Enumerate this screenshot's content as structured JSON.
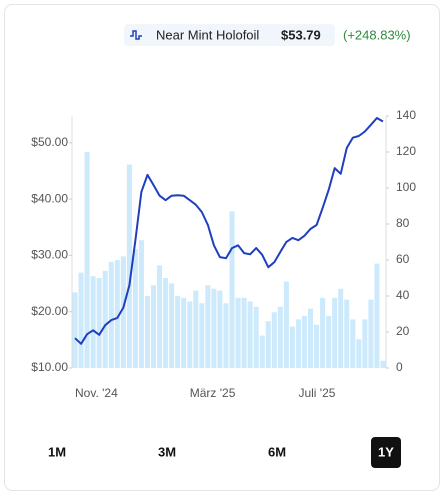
{
  "chart_data": {
    "type": "line",
    "series": [
      {
        "name": "Near Mint Holofoil",
        "color": "#1f3fbf",
        "price": "$53.79",
        "change": "(+248.83%)",
        "change_color": "#2e8b3e",
        "values": [
          15.3,
          14.3,
          16,
          16.7,
          15.9,
          17.6,
          18.5,
          18.9,
          20.7,
          24.7,
          32.7,
          41.3,
          44.3,
          42.5,
          40.6,
          39.8,
          40.6,
          40.7,
          40.6,
          39.8,
          39,
          37.7,
          35.4,
          31.8,
          29.7,
          29.5,
          31.3,
          31.8,
          30.4,
          30.2,
          31.3,
          30.1,
          27.9,
          28.8,
          30.6,
          32.4,
          33.1,
          32.7,
          33.5,
          34.7,
          35.4,
          38.4,
          41.6,
          45.5,
          44.5,
          49.1,
          50.9,
          51.2,
          52,
          53.2,
          54.4,
          53.79
        ]
      },
      {
        "type": "bar",
        "axis": "y2",
        "color": "#cdeafc",
        "values": [
          42,
          53,
          120,
          51,
          50,
          54,
          59,
          60,
          62,
          113,
          66,
          71,
          40,
          46,
          57,
          50,
          47,
          40,
          39,
          37,
          43,
          36,
          46,
          44,
          43,
          36,
          87,
          39,
          39,
          37,
          34,
          18,
          26,
          31,
          34,
          48,
          23,
          27,
          29,
          33,
          24,
          39,
          29,
          39,
          44,
          38,
          27,
          16,
          27,
          38,
          58,
          4
        ]
      }
    ],
    "categories": [
      "Nov. '24",
      null,
      null,
      null,
      null,
      null,
      null,
      null,
      null,
      null,
      null,
      null,
      null,
      null,
      null,
      null,
      null,
      null,
      null,
      "März '25",
      null,
      null,
      null,
      null,
      null,
      null,
      null,
      null,
      null,
      null,
      null,
      null,
      null,
      null,
      null,
      null,
      null,
      "Juli '25",
      null,
      null,
      null,
      null,
      null,
      null,
      null,
      null,
      null,
      null,
      null,
      null,
      null,
      null
    ],
    "ylim": [
      10,
      54.76
    ],
    "yticks": [
      {
        "value": 10,
        "label": "$10.00"
      },
      {
        "value": 20,
        "label": "$20.00"
      },
      {
        "value": 30,
        "label": "$30.00"
      },
      {
        "value": 40,
        "label": "$40.00"
      },
      {
        "value": 50,
        "label": "$50.00"
      }
    ],
    "y2lim": [
      0,
      140
    ],
    "y2ticks": [
      0,
      20,
      40,
      60,
      80,
      100,
      120,
      140
    ],
    "ranges": [
      "1M",
      "3M",
      "6M",
      "1Y"
    ],
    "active_range": "1Y"
  }
}
